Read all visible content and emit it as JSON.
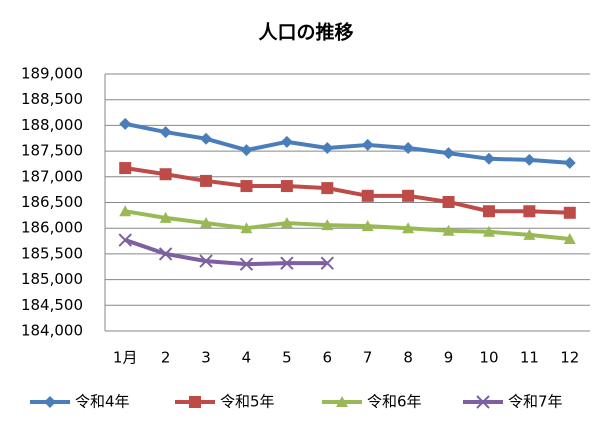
{
  "chart_data": {
    "type": "line",
    "title": "人口の推移",
    "categories": [
      "1月",
      "2",
      "3",
      "4",
      "5",
      "6",
      "7",
      "8",
      "9",
      "10",
      "11",
      "12"
    ],
    "series": [
      {
        "name": "令和4年",
        "color": "#4a7ebb",
        "marker": "diamond",
        "values": [
          188030,
          187870,
          187740,
          187520,
          187680,
          187560,
          187620,
          187560,
          187460,
          187350,
          187330,
          187270
        ]
      },
      {
        "name": "令和5年",
        "color": "#be4b48",
        "marker": "square",
        "values": [
          187170,
          187050,
          186920,
          186820,
          186820,
          186780,
          186630,
          186630,
          186510,
          186330,
          186330,
          186300
        ]
      },
      {
        "name": "令和6年",
        "color": "#98b954",
        "marker": "triangle",
        "values": [
          186330,
          186200,
          186100,
          186000,
          186100,
          186060,
          186040,
          186000,
          185950,
          185930,
          185870,
          185790
        ]
      },
      {
        "name": "令和7年",
        "color": "#7d60a0",
        "marker": "x",
        "values": [
          185770,
          185500,
          185360,
          185300,
          185320,
          185320,
          null,
          null,
          null,
          null,
          null,
          null
        ]
      }
    ],
    "ylim": [
      184000,
      189000
    ],
    "yticks": [
      {
        "value": 184000,
        "label": "184,000"
      },
      {
        "value": 184500,
        "label": "184,500"
      },
      {
        "value": 185000,
        "label": "185,000"
      },
      {
        "value": 185500,
        "label": "185,500"
      },
      {
        "value": 186000,
        "label": "186,000"
      },
      {
        "value": 186500,
        "label": "186,500"
      },
      {
        "value": 187000,
        "label": "187,000"
      },
      {
        "value": 187500,
        "label": "187,500"
      },
      {
        "value": 188000,
        "label": "188,000"
      },
      {
        "value": 188500,
        "label": "188,500"
      },
      {
        "value": 189000,
        "label": "189,000"
      }
    ],
    "grid": true,
    "legend": "bottom"
  }
}
